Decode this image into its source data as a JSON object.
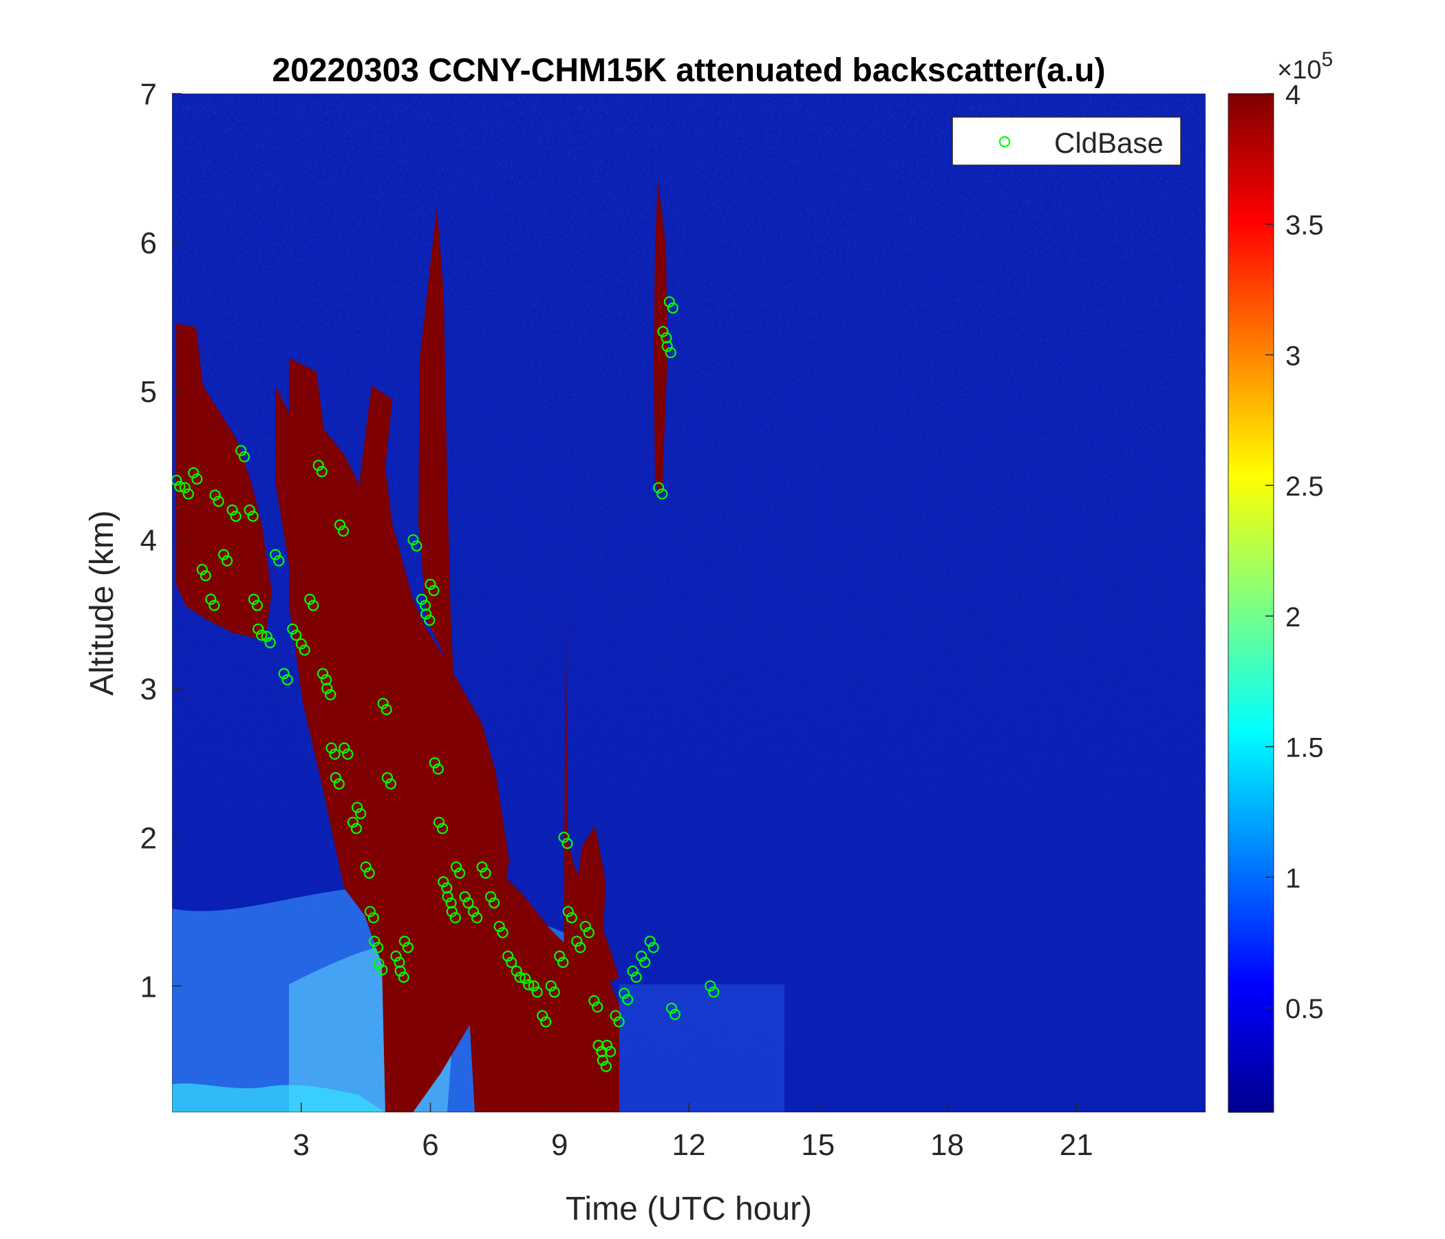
{
  "chart_data": {
    "type": "heatmap",
    "title": "20220303 CCNY-CHM15K attenuated backscatter(a.u)",
    "xlabel": "Time (UTC hour)",
    "ylabel": "Altitude (km)",
    "xlim": [
      0,
      24
    ],
    "ylim": [
      0.15,
      7
    ],
    "xticks": [
      "3",
      "6",
      "9",
      "12",
      "15",
      "18",
      "21"
    ],
    "yticks": [
      "1",
      "2",
      "3",
      "4",
      "5",
      "6",
      "7"
    ],
    "colormap": "jet",
    "colorbar": {
      "range": [
        0.1,
        4
      ],
      "ticks": [
        "0.5",
        "1",
        "1.5",
        "2",
        "2.5",
        "3",
        "3.5",
        "4"
      ],
      "exponent_label": "×10",
      "exponent": "5"
    },
    "legend": {
      "position": "top-right",
      "entries": [
        "CldBase"
      ],
      "marker_color": "#00ff00"
    },
    "background_color": "#0a1fb4",
    "series": [
      {
        "name": "CldBase",
        "marker": "open-circle",
        "color": "#00ff00",
        "x": [
          0.1,
          0.3,
          0.5,
          0.7,
          0.9,
          1.0,
          1.2,
          1.4,
          1.6,
          1.8,
          1.9,
          2.0,
          2.2,
          2.4,
          2.6,
          2.8,
          3.0,
          3.2,
          3.4,
          3.5,
          3.6,
          3.7,
          3.8,
          3.9,
          4.0,
          4.2,
          4.3,
          4.5,
          4.6,
          4.7,
          4.8,
          4.9,
          5.0,
          5.2,
          5.3,
          5.4,
          5.6,
          5.8,
          5.9,
          6.0,
          6.1,
          6.2,
          6.3,
          6.4,
          6.5,
          6.6,
          6.8,
          7.0,
          7.2,
          7.4,
          7.6,
          7.8,
          8.0,
          8.2,
          8.4,
          8.6,
          8.8,
          9.0,
          9.1,
          9.2,
          9.4,
          9.6,
          9.8,
          9.9,
          10.0,
          10.1,
          10.3,
          10.5,
          10.7,
          10.9,
          11.1,
          11.3,
          11.4,
          11.5,
          11.55,
          11.6,
          12.5
        ],
        "y": [
          4.4,
          4.35,
          4.45,
          3.8,
          3.6,
          4.3,
          3.9,
          4.2,
          4.6,
          4.2,
          3.6,
          3.4,
          3.35,
          3.9,
          3.1,
          3.4,
          3.3,
          3.6,
          4.5,
          3.1,
          3.0,
          2.6,
          2.4,
          4.1,
          2.6,
          2.1,
          2.2,
          1.8,
          1.5,
          1.3,
          1.15,
          2.9,
          2.4,
          1.2,
          1.1,
          1.3,
          4.0,
          3.6,
          3.5,
          3.7,
          2.5,
          2.1,
          1.7,
          1.6,
          1.5,
          1.8,
          1.6,
          1.5,
          1.8,
          1.6,
          1.4,
          1.2,
          1.1,
          1.05,
          1.0,
          0.8,
          1.0,
          1.2,
          2.0,
          1.5,
          1.3,
          1.4,
          0.9,
          0.6,
          0.5,
          0.6,
          0.8,
          0.95,
          1.1,
          1.2,
          1.3,
          4.35,
          5.4,
          5.3,
          5.6,
          0.85,
          1.0
        ]
      }
    ]
  }
}
